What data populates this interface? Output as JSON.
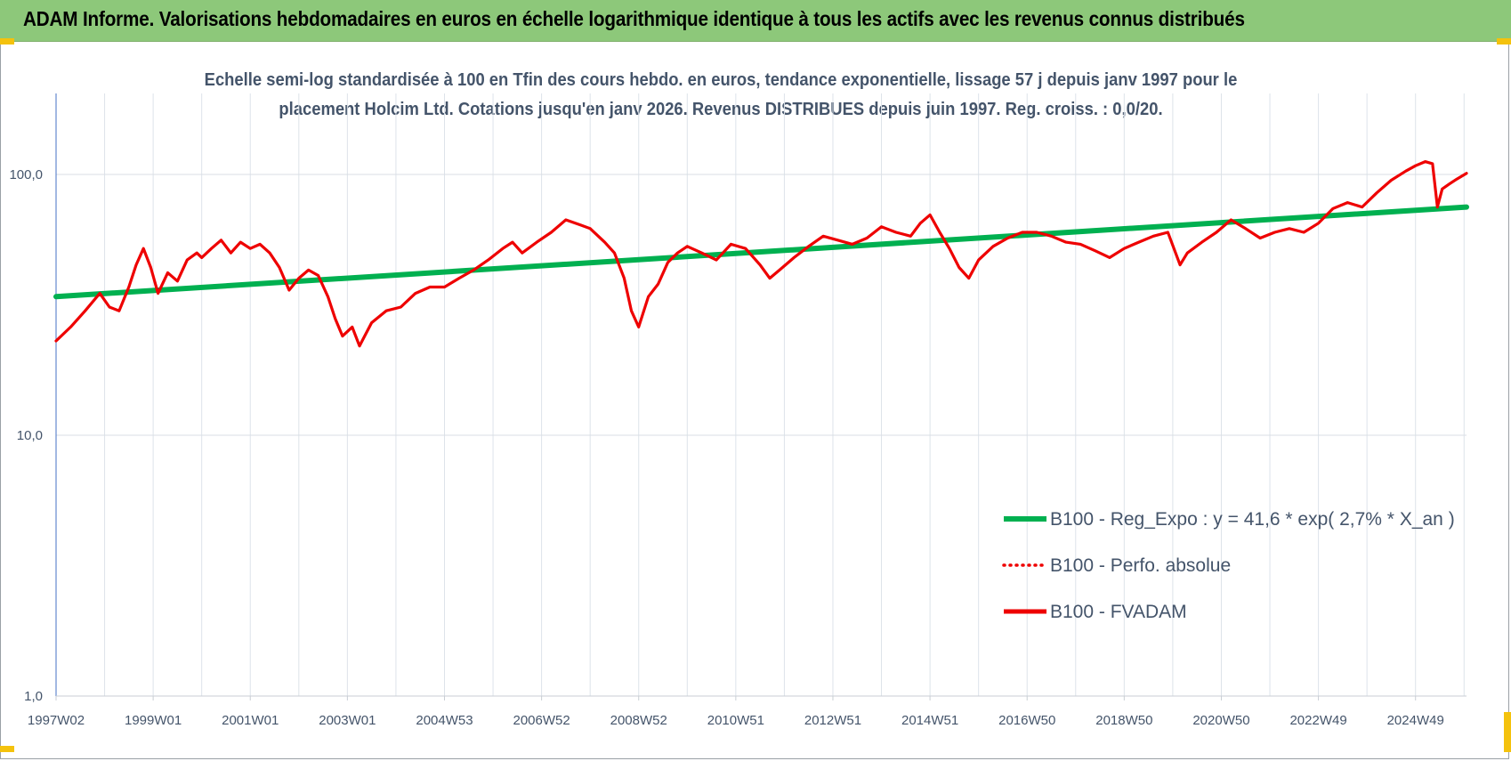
{
  "header": {
    "title": "ADAM Informe. Valorisations hebdomadaires en euros en échelle logarithmique identique à tous les actifs avec les revenus connus distribués"
  },
  "colors": {
    "header_bg": "#8dc87a",
    "trend": "#00b050",
    "fvadam": "#ee0000",
    "perfo": "#ee0000",
    "corner_marks": "#f4c20d",
    "text": "#44546a"
  },
  "chart_data": {
    "type": "line",
    "title_line1": "Echelle semi-log standardisée à 100 en Tfin des cours hebdo. en euros, tendance exponentielle, lissage 57 j depuis janv 1997 pour le",
    "title_line2": "placement Holcim Ltd. Cotations jusqu'en janv 2026.  Revenus DISTRIBUES depuis juin 1997. Reg. croiss. : 0,0/20.",
    "y_scale": "log",
    "ylim": [
      1,
      200
    ],
    "y_ticks": [
      {
        "value": 1,
        "label": "1,0"
      },
      {
        "value": 10,
        "label": "10,0"
      },
      {
        "value": 100,
        "label": "100,0"
      }
    ],
    "x_range": [
      1997.0,
      2026.05
    ],
    "x_ticks": [
      {
        "x": 1997.0,
        "label": "1997W02"
      },
      {
        "x": 1999.0,
        "label": "1999W01"
      },
      {
        "x": 2001.0,
        "label": "2001W01"
      },
      {
        "x": 2003.0,
        "label": "2003W01"
      },
      {
        "x": 2005.0,
        "label": "2004W53"
      },
      {
        "x": 2007.0,
        "label": "2006W52"
      },
      {
        "x": 2009.0,
        "label": "2008W52"
      },
      {
        "x": 2011.0,
        "label": "2010W51"
      },
      {
        "x": 2013.0,
        "label": "2012W51"
      },
      {
        "x": 2015.0,
        "label": "2014W51"
      },
      {
        "x": 2017.0,
        "label": "2016W50"
      },
      {
        "x": 2019.0,
        "label": "2018W50"
      },
      {
        "x": 2021.0,
        "label": "2020W50"
      },
      {
        "x": 2023.0,
        "label": "2022W49"
      },
      {
        "x": 2025.0,
        "label": "2024W49"
      }
    ],
    "grid": true,
    "legend_position": "bottom-right",
    "series": [
      {
        "name": "B100 - Reg_Expo : y = 41,6 * exp( 2,7% *  X_an )",
        "style": "solid-thick",
        "color": "#00b050",
        "x": [
          1997.0,
          2026.05
        ],
        "y": [
          34.0,
          75.0
        ]
      },
      {
        "name": "B100 - Perfo. absolue",
        "style": "dotted",
        "color": "#ee0000",
        "x": [],
        "y": []
      },
      {
        "name": "B100 - FVADAM",
        "style": "solid",
        "color": "#ee0000",
        "x": [
          1997.0,
          1997.3,
          1997.6,
          1997.9,
          1998.1,
          1998.3,
          1998.5,
          1998.65,
          1998.8,
          1998.95,
          1999.1,
          1999.3,
          1999.5,
          1999.7,
          1999.9,
          2000.0,
          2000.2,
          2000.4,
          2000.6,
          2000.8,
          2001.0,
          2001.2,
          2001.4,
          2001.6,
          2001.8,
          2002.0,
          2002.2,
          2002.4,
          2002.6,
          2002.75,
          2002.9,
          2003.1,
          2003.25,
          2003.5,
          2003.8,
          2004.1,
          2004.4,
          2004.7,
          2005.0,
          2005.3,
          2005.6,
          2005.9,
          2006.2,
          2006.4,
          2006.6,
          2006.9,
          2007.2,
          2007.5,
          2007.8,
          2008.0,
          2008.3,
          2008.5,
          2008.7,
          2008.85,
          2009.0,
          2009.2,
          2009.4,
          2009.6,
          2009.8,
          2010.0,
          2010.3,
          2010.6,
          2010.9,
          2011.2,
          2011.5,
          2011.7,
          2011.9,
          2012.2,
          2012.5,
          2012.8,
          2013.1,
          2013.4,
          2013.7,
          2014.0,
          2014.3,
          2014.6,
          2014.8,
          2015.0,
          2015.2,
          2015.4,
          2015.6,
          2015.8,
          2016.0,
          2016.3,
          2016.6,
          2016.9,
          2017.2,
          2017.5,
          2017.8,
          2018.1,
          2018.4,
          2018.7,
          2019.0,
          2019.3,
          2019.6,
          2019.9,
          2020.15,
          2020.3,
          2020.6,
          2020.9,
          2021.2,
          2021.5,
          2021.8,
          2022.1,
          2022.4,
          2022.7,
          2023.0,
          2023.3,
          2023.6,
          2023.9,
          2024.2,
          2024.5,
          2024.8,
          2025.0,
          2025.2,
          2025.35,
          2025.45,
          2025.55,
          2025.7,
          2025.85,
          2026.05
        ],
        "y": [
          23.0,
          26.0,
          30.0,
          35.0,
          31.0,
          30.0,
          37.0,
          45.0,
          52.0,
          44.0,
          35.0,
          42.0,
          39.0,
          47.0,
          50.0,
          48.0,
          52.0,
          56.0,
          50.0,
          55.0,
          52.0,
          54.0,
          50.0,
          44.0,
          36.0,
          40.0,
          43.0,
          41.0,
          34.0,
          28.0,
          24.0,
          26.0,
          22.0,
          27.0,
          30.0,
          31.0,
          35.0,
          37.0,
          37.0,
          40.0,
          43.0,
          47.0,
          52.0,
          55.0,
          50.0,
          55.0,
          60.0,
          67.0,
          64.0,
          62.0,
          55.0,
          50.0,
          40.0,
          30.0,
          26.0,
          34.0,
          38.0,
          46.0,
          50.0,
          53.0,
          50.0,
          47.0,
          54.0,
          52.0,
          45.0,
          40.0,
          43.0,
          48.0,
          53.0,
          58.0,
          56.0,
          54.0,
          57.0,
          63.0,
          60.0,
          58.0,
          65.0,
          70.0,
          60.0,
          52.0,
          44.0,
          40.0,
          47.0,
          53.0,
          57.0,
          60.0,
          60.0,
          58.0,
          55.0,
          54.0,
          51.0,
          48.0,
          52.0,
          55.0,
          58.0,
          60.0,
          45.0,
          50.0,
          55.0,
          60.0,
          67.0,
          62.0,
          57.0,
          60.0,
          62.0,
          60.0,
          65.0,
          74.0,
          78.0,
          75.0,
          85.0,
          95.0,
          103.0,
          108.0,
          112.0,
          110.0,
          75.0,
          88.0,
          92.0,
          96.0,
          101.0
        ]
      }
    ]
  }
}
